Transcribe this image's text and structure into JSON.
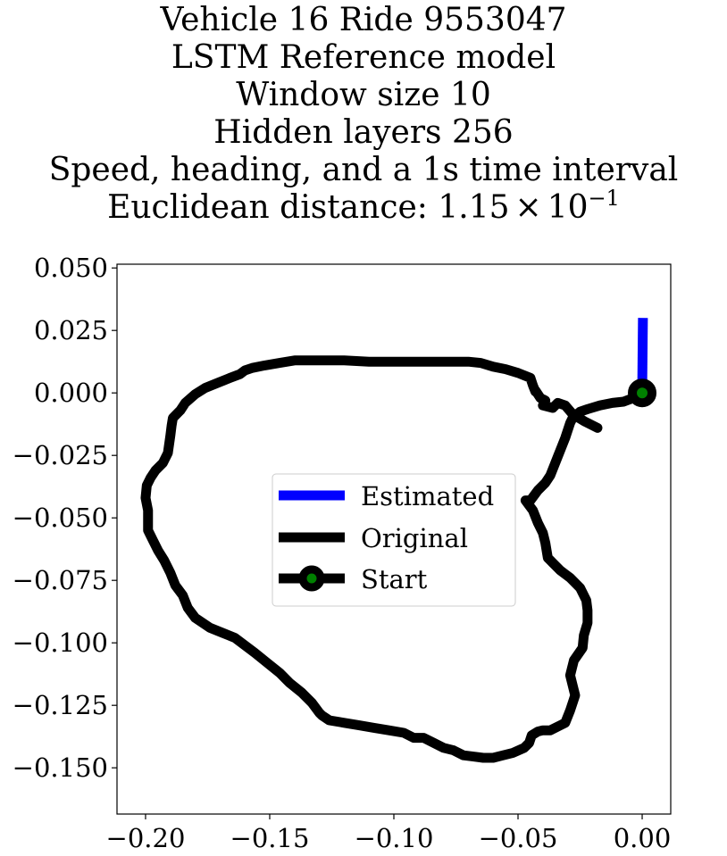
{
  "chart_data": {
    "type": "line",
    "title_lines": [
      "Vehicle 16 Ride 9553047",
      "LSTM Reference model",
      "Window size 10",
      "Hidden layers 256",
      "Speed, heading, and a 1s time interval"
    ],
    "distance_prefix": "Euclidean distance: ",
    "distance_mantissa": "1.15",
    "distance_times": "×",
    "distance_base": "10",
    "distance_exponent": "−1",
    "xlim": [
      -0.2115,
      0.0115
    ],
    "ylim": [
      -0.1685,
      0.0515
    ],
    "xticks": [
      -0.2,
      -0.15,
      -0.1,
      -0.05,
      0.0
    ],
    "xtick_labels": [
      "−0.20",
      "−0.15",
      "−0.10",
      "−0.05",
      "0.00"
    ],
    "yticks": [
      0.05,
      0.025,
      0.0,
      -0.025,
      -0.05,
      -0.075,
      -0.1,
      -0.125,
      -0.15
    ],
    "ytick_labels": [
      "0.050",
      "0.025",
      "0.000",
      "−0.025",
      "−0.050",
      "−0.075",
      "−0.100",
      "−0.125",
      "−0.150"
    ],
    "grid": false,
    "legend_position": "center",
    "series": [
      {
        "name": "Estimated",
        "color": "#0000ff",
        "x": [
          0.0,
          0.0003
        ],
        "y": [
          0.0,
          0.03
        ]
      },
      {
        "name": "Original",
        "color": "#000000",
        "x": [
          0.0,
          -0.0035,
          -0.0075,
          -0.012,
          -0.017,
          -0.022,
          -0.025,
          -0.028,
          -0.029,
          -0.031,
          -0.033,
          -0.035,
          -0.037,
          -0.039,
          -0.042,
          -0.045,
          -0.047,
          -0.044,
          -0.042,
          -0.04,
          -0.039,
          -0.038,
          -0.037,
          -0.036,
          -0.033,
          -0.029,
          -0.025,
          -0.0225,
          -0.022,
          -0.022,
          -0.0235,
          -0.024,
          -0.0275,
          -0.029,
          -0.028,
          -0.027,
          -0.029,
          -0.031,
          -0.033,
          -0.037,
          -0.04,
          -0.042,
          -0.0445,
          -0.0455,
          -0.0475,
          -0.052,
          -0.056,
          -0.06,
          -0.064,
          -0.068,
          -0.072,
          -0.076,
          -0.08,
          -0.084,
          -0.088,
          -0.092,
          -0.096,
          -0.102,
          -0.108,
          -0.114,
          -0.12,
          -0.126,
          -0.129,
          -0.13,
          -0.133,
          -0.137,
          -0.142,
          -0.146,
          -0.151,
          -0.156,
          -0.16,
          -0.164,
          -0.169,
          -0.174,
          -0.18,
          -0.183,
          -0.185,
          -0.188,
          -0.19,
          -0.1925,
          -0.195,
          -0.197,
          -0.199,
          -0.199,
          -0.199,
          -0.2,
          -0.1995,
          -0.198,
          -0.196,
          -0.193,
          -0.191,
          -0.19,
          -0.1895,
          -0.189,
          -0.186,
          -0.184,
          -0.18,
          -0.176,
          -0.171,
          -0.166,
          -0.162,
          -0.16,
          -0.157,
          -0.152,
          -0.146,
          -0.14,
          -0.135,
          -0.13,
          -0.12,
          -0.11,
          -0.1,
          -0.09,
          -0.08,
          -0.075,
          -0.07,
          -0.065,
          -0.06,
          -0.055,
          -0.05,
          -0.045,
          -0.044,
          -0.043,
          -0.043,
          -0.041,
          -0.039,
          -0.04,
          -0.036,
          -0.034,
          -0.031,
          -0.028,
          -0.023,
          -0.018
        ],
        "y": [
          0.0,
          -0.002,
          -0.0035,
          -0.004,
          -0.005,
          -0.0065,
          -0.0075,
          -0.01,
          -0.012,
          -0.018,
          -0.023,
          -0.028,
          -0.033,
          -0.036,
          -0.039,
          -0.043,
          -0.043,
          -0.047,
          -0.052,
          -0.056,
          -0.06,
          -0.066,
          -0.067,
          -0.068,
          -0.071,
          -0.074,
          -0.078,
          -0.083,
          -0.087,
          -0.092,
          -0.097,
          -0.102,
          -0.107,
          -0.113,
          -0.117,
          -0.121,
          -0.127,
          -0.132,
          -0.133,
          -0.135,
          -0.135,
          -0.1355,
          -0.137,
          -0.14,
          -0.142,
          -0.144,
          -0.145,
          -0.146,
          -0.146,
          -0.1455,
          -0.145,
          -0.143,
          -0.142,
          -0.14,
          -0.138,
          -0.138,
          -0.136,
          -0.135,
          -0.134,
          -0.133,
          -0.132,
          -0.131,
          -0.129,
          -0.128,
          -0.124,
          -0.12,
          -0.116,
          -0.112,
          -0.108,
          -0.104,
          -0.101,
          -0.098,
          -0.096,
          -0.094,
          -0.09,
          -0.086,
          -0.081,
          -0.077,
          -0.072,
          -0.067,
          -0.063,
          -0.059,
          -0.055,
          -0.052,
          -0.047,
          -0.042,
          -0.037,
          -0.034,
          -0.031,
          -0.028,
          -0.024,
          -0.017,
          -0.013,
          -0.01,
          -0.007,
          -0.004,
          -0.0005,
          0.002,
          0.004,
          0.006,
          0.0075,
          0.009,
          0.01,
          0.011,
          0.012,
          0.013,
          0.013,
          0.013,
          0.013,
          0.0125,
          0.0125,
          0.0125,
          0.0125,
          0.0125,
          0.0125,
          0.012,
          0.0105,
          0.0095,
          0.008,
          0.006,
          0.003,
          0.0005,
          0.001,
          -0.002,
          -0.003,
          -0.005,
          -0.006,
          -0.004,
          -0.005,
          -0.0085,
          -0.0115,
          -0.014
        ]
      },
      {
        "name": "Start",
        "marker_edge_color": "#000000",
        "marker_face_color": "#008000",
        "x": [
          0.0
        ],
        "y": [
          0.0
        ]
      }
    ]
  }
}
